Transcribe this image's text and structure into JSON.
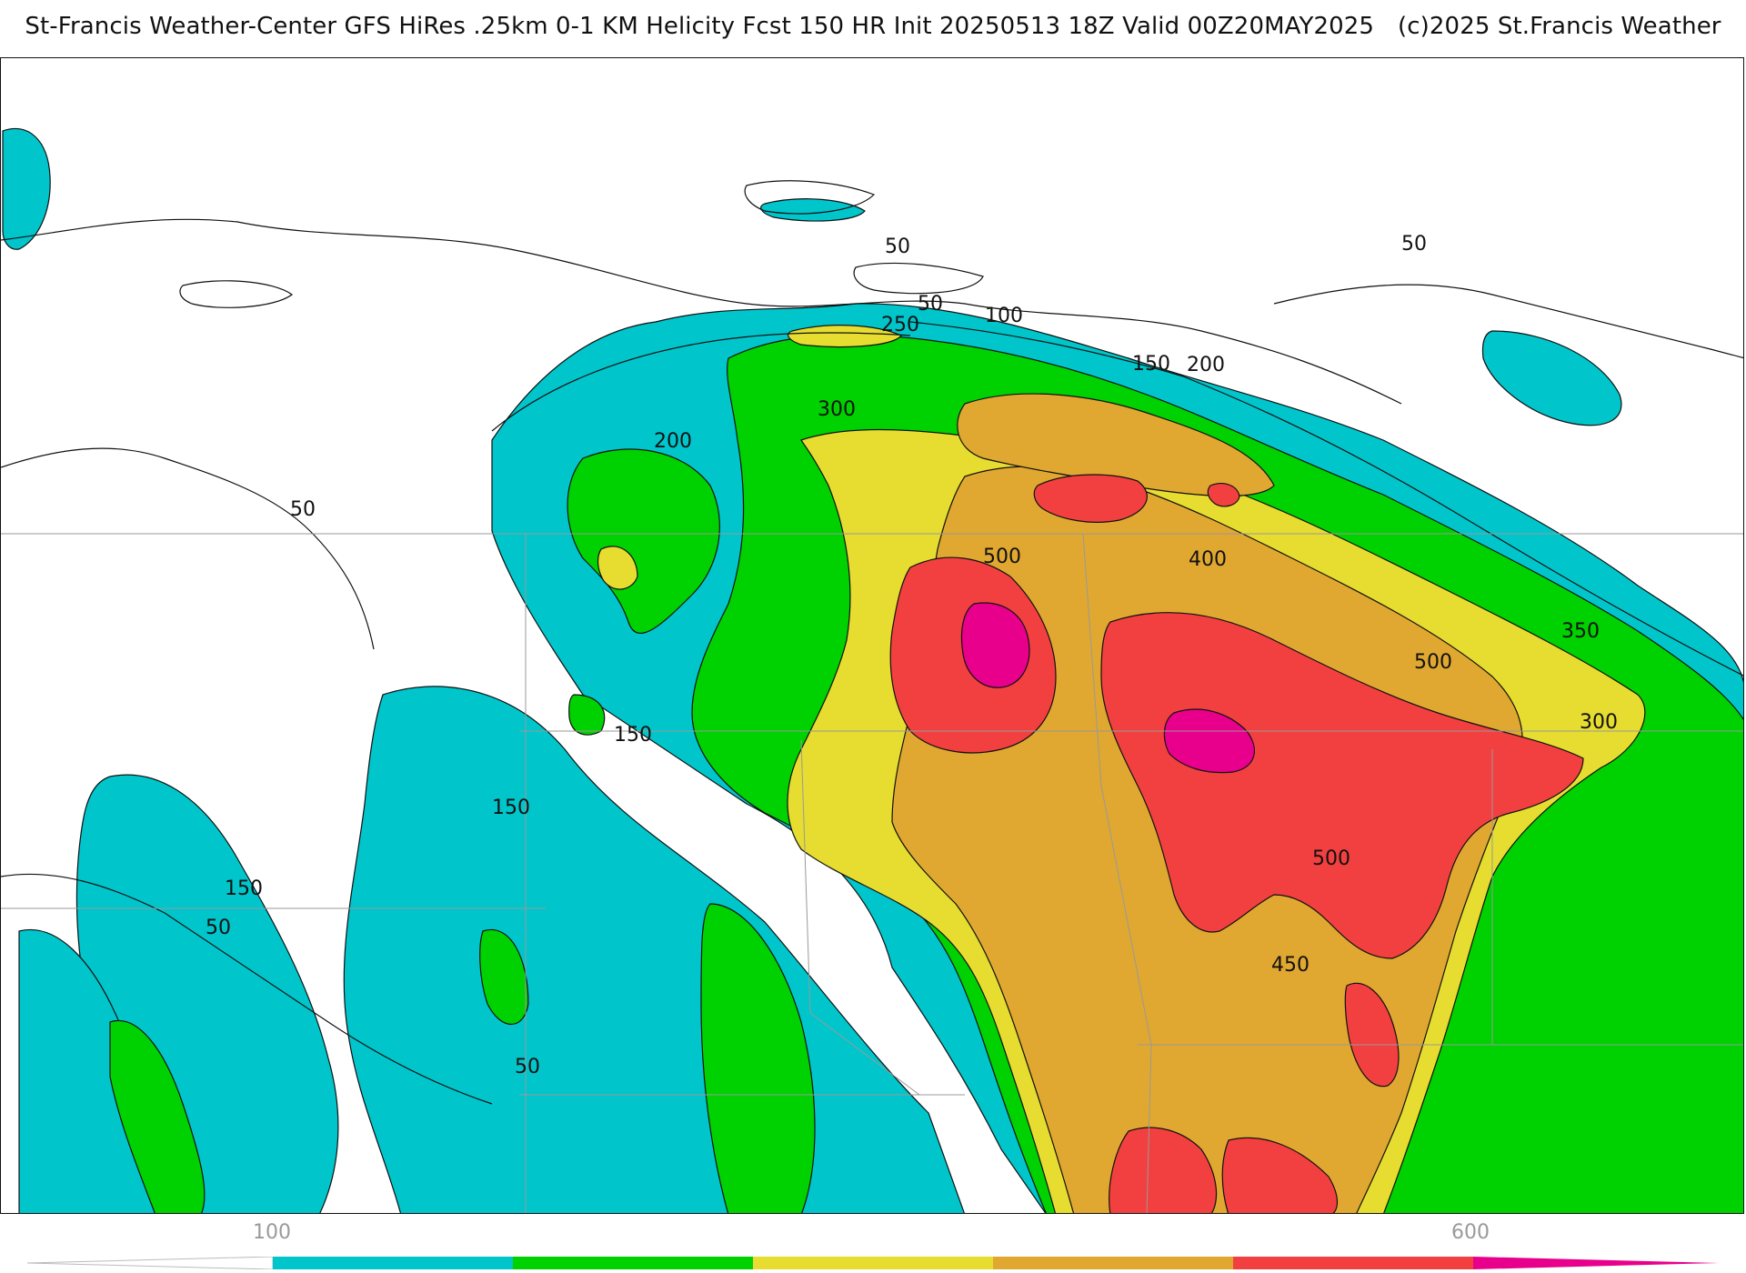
{
  "header": {
    "title_left": "St-Francis Weather-Center GFS HiRes .25km 0-1 KM Helicity Fcst 150 HR Init 20250513 18Z  Valid 00Z20MAY2025",
    "title_right": "(c)2025 St.Francis Weather"
  },
  "colors": {
    "cyan": "#00c6cc",
    "green": "#00d100",
    "yellow": "#e6dd30",
    "orange": "#e0a830",
    "red": "#f24040",
    "magenta": "#e8008c",
    "contour": "#111111",
    "border": "#bfbfbf"
  },
  "contour_labels": [
    {
      "text": "50"
    },
    {
      "text": "50"
    },
    {
      "text": "50"
    },
    {
      "text": "50"
    },
    {
      "text": "50"
    },
    {
      "text": "50"
    },
    {
      "text": "100"
    },
    {
      "text": "150"
    },
    {
      "text": "150"
    },
    {
      "text": "150"
    },
    {
      "text": "150"
    },
    {
      "text": "200"
    },
    {
      "text": "200"
    },
    {
      "text": "250"
    },
    {
      "text": "300"
    },
    {
      "text": "300"
    },
    {
      "text": "350"
    },
    {
      "text": "400"
    },
    {
      "text": "450"
    },
    {
      "text": "500"
    },
    {
      "text": "500"
    },
    {
      "text": "500"
    }
  ],
  "legend": {
    "tick_labels": [
      "100",
      "600"
    ],
    "colors": [
      "#00c6cc",
      "#00d100",
      "#e6dd30",
      "#e0a830",
      "#f24040",
      "#e8008c"
    ]
  }
}
